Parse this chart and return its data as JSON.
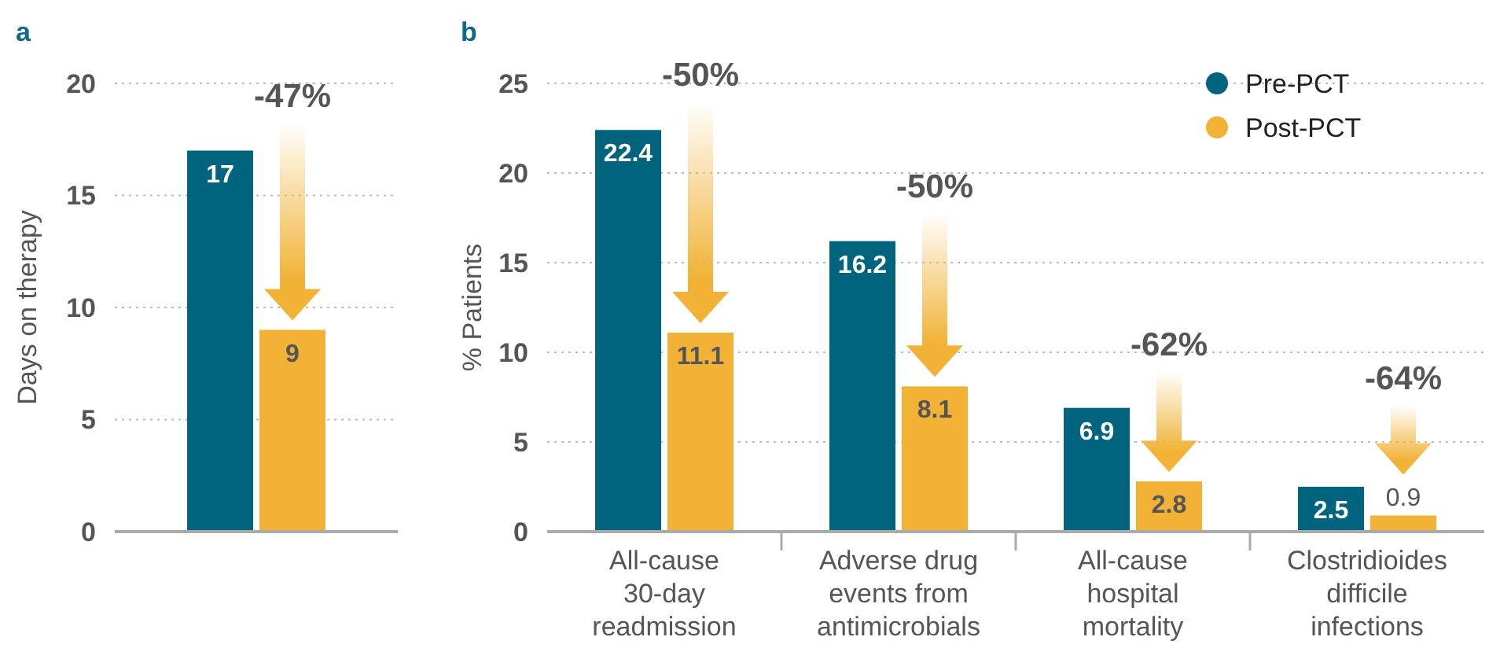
{
  "chart_data": [
    {
      "type": "bar",
      "title": "a",
      "ylabel": "Days on therapy",
      "categories": [
        null
      ],
      "series": [
        {
          "color": "#00647f",
          "values": [
            17
          ]
        },
        {
          "color": "#f1b235",
          "values": [
            9
          ]
        }
      ],
      "ylim": [
        0,
        20
      ],
      "yticks": [
        0,
        5,
        10,
        15,
        20
      ],
      "grid": "y",
      "data_labels": true,
      "legend": false,
      "annotations": [
        "-47%"
      ]
    },
    {
      "type": "bar",
      "title": "b",
      "ylabel": "% Patients",
      "categories": [
        "All-cause 30-day readmission",
        "Adverse drug events from antimicrobials",
        "All-cause hospital mortality",
        "Clostridioides difficile infections"
      ],
      "series": [
        {
          "name": "Pre-PCT",
          "color": "#00647f",
          "values": [
            22.4,
            16.2,
            6.9,
            2.5
          ]
        },
        {
          "name": "Post-PCT",
          "color": "#f1b235",
          "values": [
            11.1,
            8.1,
            2.8,
            0.9
          ]
        }
      ],
      "ylim": [
        0,
        25
      ],
      "yticks": [
        0,
        5,
        10,
        15,
        20,
        25
      ],
      "grid": "y",
      "data_labels": true,
      "legend": "top right",
      "annotations": [
        "-50%",
        "-50%",
        "-62%",
        "-64%"
      ]
    }
  ]
}
